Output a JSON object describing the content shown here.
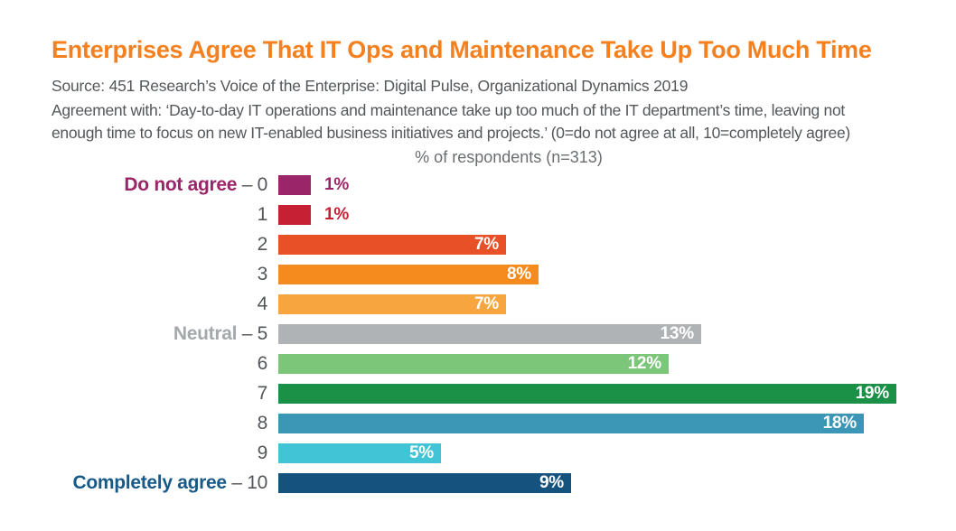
{
  "title": {
    "text": "Enterprises Agree That IT Ops and Maintenance Take Up Too Much Time",
    "color": "#F5801F"
  },
  "source": {
    "text": "Source: 451 Research’s Voice of the Enterprise: Digital Pulse, Organizational Dynamics 2019"
  },
  "agreement": {
    "line1": "Agreement with: ‘Day-to-day IT operations and maintenance take up too much of the IT department’s time, leaving not",
    "line2": "enough time to focus on new IT-enabled business initiatives and projects.’ (0=do not agree at all, 10=completely agree)"
  },
  "colors": {
    "title": "#F5801F",
    "body_text": "#54575A",
    "note_text": "#6B6E70",
    "category_number": "#53565A",
    "background": "#FFFFFF"
  },
  "chart_data": {
    "type": "bar",
    "orientation": "horizontal",
    "title": "% of respondents (n=313)",
    "xlabel": "% of respondents",
    "n": 313,
    "xlim": [
      0,
      19.5
    ],
    "grid": false,
    "legend": "none",
    "category_separator": " – ",
    "categories": [
      "0",
      "1",
      "2",
      "3",
      "4",
      "5",
      "6",
      "7",
      "8",
      "9",
      "10"
    ],
    "values": [
      1,
      1,
      7,
      8,
      7,
      13,
      12,
      19,
      18,
      5,
      9
    ],
    "rows": [
      {
        "category": "0",
        "prefix": "Do not agree",
        "prefix_color": "#9A2569",
        "value": 1,
        "value_label": "1%",
        "bar_color": "#9A2569",
        "label_inside": false,
        "label_color": "#9A2569"
      },
      {
        "category": "1",
        "value": 1,
        "value_label": "1%",
        "bar_color": "#C52033",
        "label_inside": false,
        "label_color": "#C52033"
      },
      {
        "category": "2",
        "value": 7,
        "value_label": "7%",
        "bar_color": "#E85127",
        "label_inside": true
      },
      {
        "category": "3",
        "value": 8,
        "value_label": "8%",
        "bar_color": "#F58A1E",
        "label_inside": true
      },
      {
        "category": "4",
        "value": 7,
        "value_label": "7%",
        "bar_color": "#F7A63F",
        "label_inside": true
      },
      {
        "category": "5",
        "prefix": "Neutral",
        "prefix_color": "#A4A9AC",
        "value": 13,
        "value_label": "13%",
        "bar_color": "#AFB3B5",
        "label_inside": true
      },
      {
        "category": "6",
        "value": 12,
        "value_label": "12%",
        "bar_color": "#7CC679",
        "label_inside": true
      },
      {
        "category": "7",
        "value": 19,
        "value_label": "19%",
        "bar_color": "#1B9147",
        "label_inside": true
      },
      {
        "category": "8",
        "value": 18,
        "value_label": "18%",
        "bar_color": "#3C96B5",
        "label_inside": true
      },
      {
        "category": "9",
        "value": 5,
        "value_label": "5%",
        "bar_color": "#41C4D5",
        "label_inside": true
      },
      {
        "category": "10",
        "prefix": "Completely agree",
        "prefix_color": "#175A87",
        "value": 9,
        "value_label": "9%",
        "bar_color": "#15537E",
        "label_inside": true
      }
    ]
  }
}
